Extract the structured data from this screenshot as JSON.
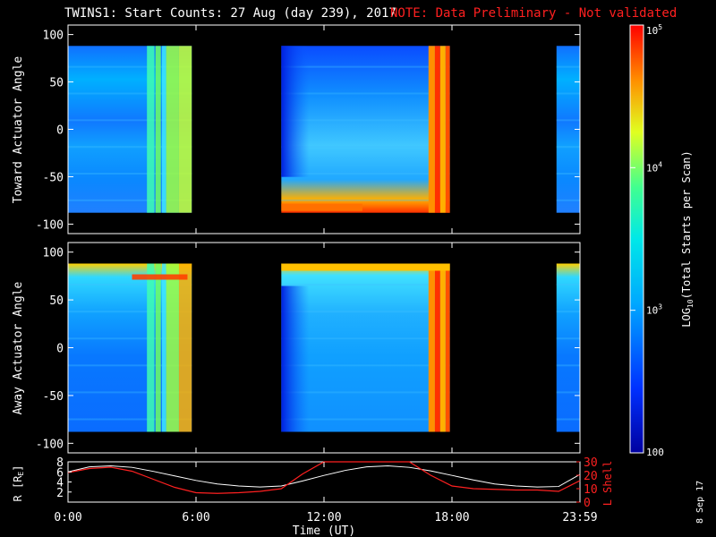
{
  "title": "TWINS1: Start Counts: 27 Aug (day 239), 2017",
  "note": "NOTE: Data Preliminary - Not validated",
  "footer_date": "8 Sep 17",
  "colors": {
    "background": "#000000",
    "axes": "#ffffff",
    "note": "#ff2020",
    "l_shell": "#ff2020",
    "r_line": "#ffffff"
  },
  "chart_data": [
    {
      "type": "heatmap",
      "panel": "toward",
      "ylabel": "Toward Actuator Angle",
      "ylim": [
        -110,
        110
      ],
      "yticks": [
        "100",
        "50",
        "0",
        "-50",
        "-100"
      ],
      "ytick_values": [
        100,
        50,
        0,
        -50,
        -100
      ],
      "data_range": [
        -88,
        88
      ],
      "xlim": [
        0,
        24
      ],
      "coverage_hours": [
        [
          0,
          5.8
        ],
        [
          10.0,
          17.9
        ],
        [
          22.9,
          24
        ]
      ]
    },
    {
      "type": "heatmap",
      "panel": "away",
      "ylabel": "Away Actuator Angle",
      "ylim": [
        -110,
        110
      ],
      "yticks": [
        "100",
        "50",
        "0",
        "-50",
        "-100"
      ],
      "ytick_values": [
        100,
        50,
        0,
        -50,
        -100
      ],
      "data_range": [
        -88,
        88
      ],
      "xlim": [
        0,
        24
      ],
      "coverage_hours": [
        [
          0,
          5.8
        ],
        [
          10.0,
          17.9
        ],
        [
          22.9,
          24
        ]
      ]
    },
    {
      "type": "line",
      "panel": "orbit",
      "xlabel": "Time (UT)",
      "xticks": [
        "0:00",
        "6:00",
        "12:00",
        "18:00",
        "23:59"
      ],
      "xtick_values": [
        0,
        6,
        12,
        18,
        24
      ],
      "ylabel_left": "R [R",
      "ylabel_left_sub": "E",
      "ylabel_left_end": "]",
      "yticks_left": [
        "8",
        "6",
        "4",
        "2"
      ],
      "ytick_values_left": [
        8,
        6,
        4,
        2
      ],
      "ylim_left": [
        0,
        8
      ],
      "ylabel_right": "L Shell",
      "yticks_right": [
        "30",
        "20",
        "10",
        "0"
      ],
      "ytick_values_right": [
        30,
        20,
        10,
        0
      ],
      "ylim_right": [
        0,
        30
      ],
      "series": [
        {
          "axis": "left",
          "x": [
            0,
            1,
            2,
            3,
            4,
            5,
            6,
            7,
            8,
            9,
            10,
            11,
            12,
            13,
            14,
            15,
            16,
            17,
            18,
            19,
            20,
            21,
            22,
            23,
            24
          ],
          "y": [
            6.0,
            7.0,
            7.2,
            6.9,
            6.1,
            5.2,
            4.3,
            3.6,
            3.2,
            3.0,
            3.2,
            4.2,
            5.3,
            6.3,
            7.0,
            7.2,
            6.9,
            6.2,
            5.3,
            4.4,
            3.6,
            3.2,
            3.0,
            3.1,
            5.5
          ]
        },
        {
          "axis": "right",
          "x": [
            0,
            1,
            2,
            3,
            4,
            5,
            6,
            7,
            8,
            9,
            10,
            11,
            12,
            13,
            14,
            15,
            16,
            17,
            18,
            19,
            20,
            21,
            22,
            23,
            24
          ],
          "y": [
            22,
            25,
            26,
            23,
            17,
            11,
            7,
            6.5,
            7,
            8,
            10,
            21,
            30,
            30,
            30,
            30,
            30,
            20,
            12,
            10,
            9.5,
            9,
            9,
            8,
            16
          ]
        }
      ]
    },
    {
      "type": "colorbar",
      "label": "LOG",
      "label_sub": "10",
      "label_end": "(Total Starts per Scan)",
      "tick_labels": [
        "10",
        "10",
        "10",
        "100"
      ],
      "tick_exps": [
        "5",
        "4",
        "3",
        ""
      ],
      "tick_values": [
        100000,
        10000,
        1000,
        100
      ],
      "range": [
        100,
        100000
      ],
      "scale": "log"
    }
  ]
}
